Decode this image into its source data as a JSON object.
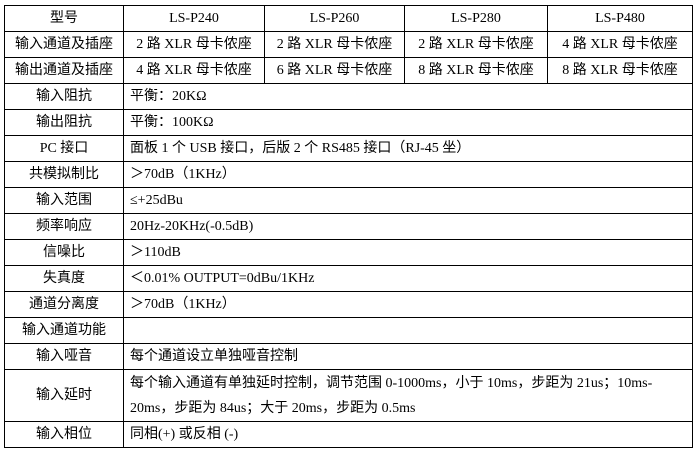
{
  "colors": {
    "background": "#ffffff",
    "border": "#000000",
    "text": "#000000"
  },
  "table": {
    "header": {
      "label": "型号",
      "models": [
        "LS-P240",
        "LS-P260",
        "LS-P280",
        "LS-P480"
      ]
    },
    "io_rows": [
      {
        "label": "输入通道及插座",
        "values": [
          "2 路 XLR 母卡侬座",
          "2 路 XLR 母卡侬座",
          "2 路 XLR 母卡侬座",
          "4 路 XLR 母卡侬座"
        ]
      },
      {
        "label": "输出通道及插座",
        "values": [
          "4 路 XLR 母卡侬座",
          "6 路 XLR 母卡侬座",
          "8 路 XLR 母卡侬座",
          "8 路 XLR 母卡侬座"
        ]
      }
    ],
    "spec_rows": [
      {
        "label": "输入阻抗",
        "value": "平衡：20KΩ"
      },
      {
        "label": "输出阻抗",
        "value": "平衡：100KΩ"
      },
      {
        "label": "PC 接口",
        "value": "面板 1 个 USB 接口，后版 2 个 RS485 接口（RJ-45 坐）"
      },
      {
        "label": "共模拟制比",
        "value": "＞70dB（1KHz）"
      },
      {
        "label": "输入范围",
        "value": "≤+25dBu"
      },
      {
        "label": "频率响应",
        "value": "20Hz-20KHz(-0.5dB)"
      },
      {
        "label": "信噪比",
        "value": "＞110dB"
      },
      {
        "label": "失真度",
        "value": "＜0.01% OUTPUT=0dBu/1KHz"
      },
      {
        "label": "通道分离度",
        "value": "＞70dB（1KHz）"
      },
      {
        "label": "输入通道功能",
        "value": ""
      },
      {
        "label": "输入哑音",
        "value": "每个通道设立单独哑音控制"
      },
      {
        "label": "输入延时",
        "value": "每个输入通道有单独延时控制，调节范围 0-1000ms，小于 10ms，步距为 21us；10ms-20ms，步距为 84us；大于 20ms，步距为 0.5ms"
      },
      {
        "label": "输入相位",
        "value": "同相(+) 或反相 (-)"
      }
    ]
  }
}
